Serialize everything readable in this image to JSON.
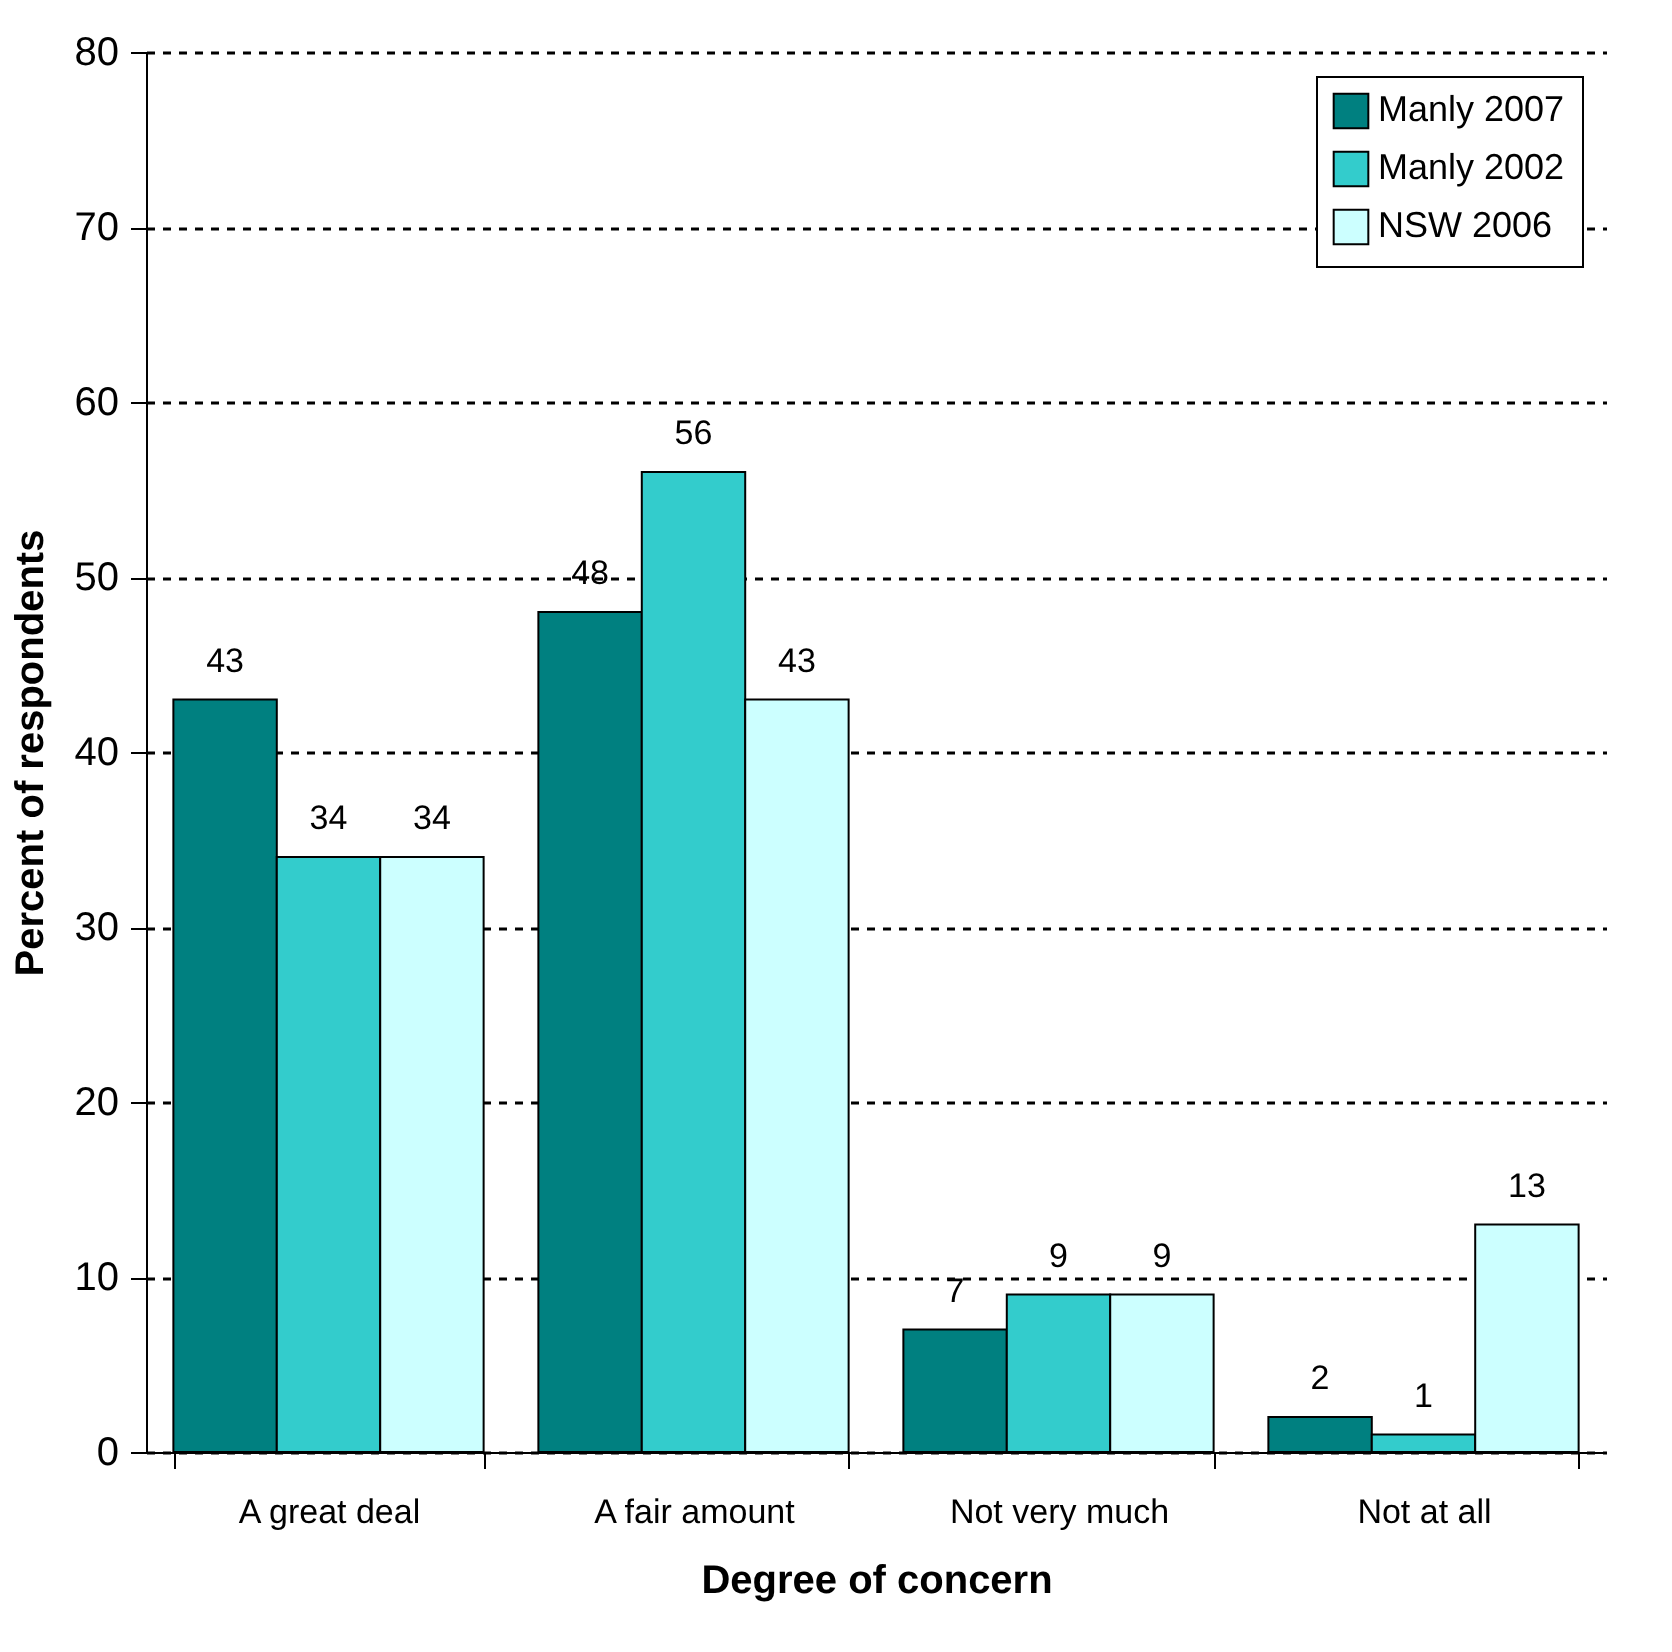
{
  "chart_data": {
    "type": "bar",
    "xlabel": "Degree of concern",
    "ylabel": "Percent of respondents",
    "categories": [
      "A great deal",
      "A fair amount",
      "Not very much",
      "Not at all"
    ],
    "series": [
      {
        "name": "Manly 2007",
        "color": "#008080",
        "values": [
          43,
          48,
          7,
          2
        ]
      },
      {
        "name": "Manly 2002",
        "color": "#33cccc",
        "values": [
          34,
          56,
          9,
          1
        ]
      },
      {
        "name": "NSW 2006",
        "color": "#ccffff",
        "values": [
          34,
          43,
          9,
          13
        ]
      }
    ],
    "ylim": [
      0,
      80
    ],
    "yticks": [
      0,
      10,
      20,
      30,
      40,
      50,
      60,
      70,
      80
    ],
    "grid": "y",
    "legend": "top right",
    "data_labels": true
  }
}
